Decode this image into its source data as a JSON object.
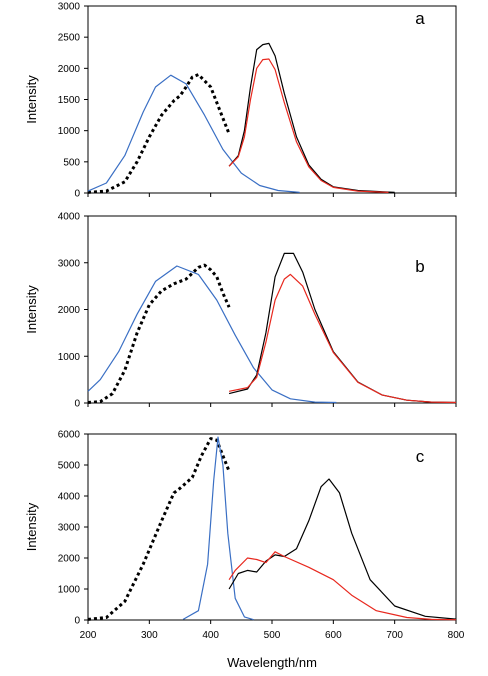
{
  "chart_data": [
    {
      "type": "line",
      "panel_label": "a",
      "ylabel": "Intensity",
      "xlim": [
        200,
        800
      ],
      "ylim": [
        0,
        3000
      ],
      "x_ticks": [
        200,
        300,
        400,
        500,
        600,
        700,
        800
      ],
      "y_ticks": [
        0,
        500,
        1000,
        1500,
        2000,
        2500,
        3000
      ],
      "series": [
        {
          "color": "#000000",
          "dash": "dotted",
          "points": [
            [
              200,
              10
            ],
            [
              230,
              30
            ],
            [
              260,
              180
            ],
            [
              280,
              500
            ],
            [
              300,
              900
            ],
            [
              320,
              1250
            ],
            [
              340,
              1480
            ],
            [
              350,
              1560
            ],
            [
              360,
              1700
            ],
            [
              370,
              1860
            ],
            [
              380,
              1900
            ],
            [
              390,
              1800
            ],
            [
              400,
              1700
            ],
            [
              410,
              1450
            ],
            [
              420,
              1200
            ],
            [
              430,
              950
            ]
          ]
        },
        {
          "color": "#3a6fc4",
          "dash": "solid",
          "points": [
            [
              200,
              30
            ],
            [
              230,
              160
            ],
            [
              260,
              600
            ],
            [
              290,
              1300
            ],
            [
              310,
              1700
            ],
            [
              335,
              1890
            ],
            [
              360,
              1750
            ],
            [
              390,
              1250
            ],
            [
              420,
              700
            ],
            [
              450,
              320
            ],
            [
              480,
              120
            ],
            [
              510,
              40
            ],
            [
              545,
              10
            ]
          ]
        },
        {
          "color": "#000000",
          "dash": "solid",
          "points": [
            [
              430,
              430
            ],
            [
              445,
              600
            ],
            [
              455,
              1000
            ],
            [
              465,
              1700
            ],
            [
              475,
              2300
            ],
            [
              485,
              2380
            ],
            [
              495,
              2400
            ],
            [
              505,
              2200
            ],
            [
              520,
              1600
            ],
            [
              540,
              900
            ],
            [
              560,
              450
            ],
            [
              580,
              220
            ],
            [
              600,
              100
            ],
            [
              640,
              40
            ],
            [
              700,
              10
            ]
          ]
        },
        {
          "color": "#e8281e",
          "dash": "solid",
          "points": [
            [
              430,
              430
            ],
            [
              445,
              580
            ],
            [
              455,
              900
            ],
            [
              465,
              1500
            ],
            [
              475,
              2000
            ],
            [
              485,
              2140
            ],
            [
              495,
              2150
            ],
            [
              505,
              1980
            ],
            [
              520,
              1450
            ],
            [
              540,
              820
            ],
            [
              560,
              420
            ],
            [
              580,
              200
            ],
            [
              600,
              90
            ],
            [
              640,
              30
            ],
            [
              690,
              10
            ]
          ]
        }
      ]
    },
    {
      "type": "line",
      "panel_label": "b",
      "ylabel": "Intensity",
      "xlim": [
        200,
        800
      ],
      "ylim": [
        0,
        4000
      ],
      "x_ticks": [
        200,
        300,
        400,
        500,
        600,
        700,
        800
      ],
      "y_ticks": [
        0,
        1000,
        2000,
        3000,
        4000
      ],
      "series": [
        {
          "color": "#000000",
          "dash": "dotted",
          "points": [
            [
              200,
              10
            ],
            [
              220,
              30
            ],
            [
              240,
              200
            ],
            [
              260,
              700
            ],
            [
              280,
              1500
            ],
            [
              300,
              2100
            ],
            [
              320,
              2400
            ],
            [
              340,
              2550
            ],
            [
              360,
              2650
            ],
            [
              380,
              2900
            ],
            [
              390,
              2950
            ],
            [
              400,
              2850
            ],
            [
              410,
              2700
            ],
            [
              420,
              2350
            ],
            [
              430,
              2050
            ]
          ]
        },
        {
          "color": "#3a6fc4",
          "dash": "solid",
          "points": [
            [
              200,
              250
            ],
            [
              220,
              500
            ],
            [
              250,
              1100
            ],
            [
              280,
              1900
            ],
            [
              310,
              2600
            ],
            [
              345,
              2930
            ],
            [
              380,
              2750
            ],
            [
              410,
              2200
            ],
            [
              440,
              1450
            ],
            [
              470,
              750
            ],
            [
              500,
              280
            ],
            [
              530,
              90
            ],
            [
              570,
              20
            ],
            [
              605,
              10
            ]
          ]
        },
        {
          "color": "#000000",
          "dash": "solid",
          "points": [
            [
              430,
              200
            ],
            [
              460,
              300
            ],
            [
              475,
              600
            ],
            [
              490,
              1500
            ],
            [
              505,
              2700
            ],
            [
              520,
              3200
            ],
            [
              535,
              3200
            ],
            [
              550,
              2800
            ],
            [
              570,
              2000
            ],
            [
              600,
              1100
            ],
            [
              640,
              450
            ],
            [
              680,
              170
            ],
            [
              720,
              60
            ],
            [
              760,
              20
            ],
            [
              800,
              10
            ]
          ]
        },
        {
          "color": "#e8281e",
          "dash": "solid",
          "points": [
            [
              430,
              250
            ],
            [
              460,
              330
            ],
            [
              475,
              550
            ],
            [
              490,
              1300
            ],
            [
              505,
              2200
            ],
            [
              520,
              2650
            ],
            [
              530,
              2750
            ],
            [
              550,
              2500
            ],
            [
              570,
              1900
            ],
            [
              600,
              1080
            ],
            [
              640,
              440
            ],
            [
              680,
              170
            ],
            [
              720,
              60
            ],
            [
              760,
              20
            ],
            [
              800,
              10
            ]
          ]
        }
      ]
    },
    {
      "type": "line",
      "panel_label": "c",
      "xlabel": "Wavelength/nm",
      "ylabel": "Intensity",
      "xlim": [
        200,
        800
      ],
      "ylim": [
        0,
        6000
      ],
      "x_ticks": [
        200,
        300,
        400,
        500,
        600,
        700,
        800
      ],
      "y_ticks": [
        0,
        1000,
        2000,
        3000,
        4000,
        5000,
        6000
      ],
      "series": [
        {
          "color": "#000000",
          "dash": "dotted",
          "points": [
            [
              200,
              20
            ],
            [
              230,
              80
            ],
            [
              260,
              600
            ],
            [
              290,
              1800
            ],
            [
              320,
              3200
            ],
            [
              340,
              4100
            ],
            [
              350,
              4250
            ],
            [
              370,
              4600
            ],
            [
              385,
              5300
            ],
            [
              400,
              5850
            ],
            [
              410,
              5800
            ],
            [
              420,
              5300
            ],
            [
              430,
              4800
            ]
          ]
        },
        {
          "color": "#3a6fc4",
          "dash": "solid",
          "points": [
            [
              355,
              20
            ],
            [
              380,
              300
            ],
            [
              395,
              1800
            ],
            [
              405,
              4500
            ],
            [
              412,
              5900
            ],
            [
              420,
              5000
            ],
            [
              428,
              2800
            ],
            [
              440,
              700
            ],
            [
              455,
              100
            ],
            [
              470,
              10
            ]
          ]
        },
        {
          "color": "#000000",
          "dash": "solid",
          "points": [
            [
              430,
              1000
            ],
            [
              445,
              1500
            ],
            [
              460,
              1600
            ],
            [
              475,
              1550
            ],
            [
              490,
              1900
            ],
            [
              505,
              2100
            ],
            [
              520,
              2050
            ],
            [
              540,
              2300
            ],
            [
              560,
              3200
            ],
            [
              580,
              4300
            ],
            [
              593,
              4550
            ],
            [
              610,
              4100
            ],
            [
              630,
              2800
            ],
            [
              660,
              1300
            ],
            [
              700,
              450
            ],
            [
              750,
              120
            ],
            [
              800,
              30
            ]
          ]
        },
        {
          "color": "#e8281e",
          "dash": "solid",
          "points": [
            [
              430,
              1300
            ],
            [
              440,
              1600
            ],
            [
              460,
              2000
            ],
            [
              475,
              1950
            ],
            [
              490,
              1850
            ],
            [
              505,
              2200
            ],
            [
              520,
              2050
            ],
            [
              560,
              1700
            ],
            [
              600,
              1300
            ],
            [
              630,
              800
            ],
            [
              670,
              300
            ],
            [
              720,
              80
            ],
            [
              760,
              20
            ],
            [
              800,
              10
            ]
          ]
        }
      ]
    }
  ]
}
